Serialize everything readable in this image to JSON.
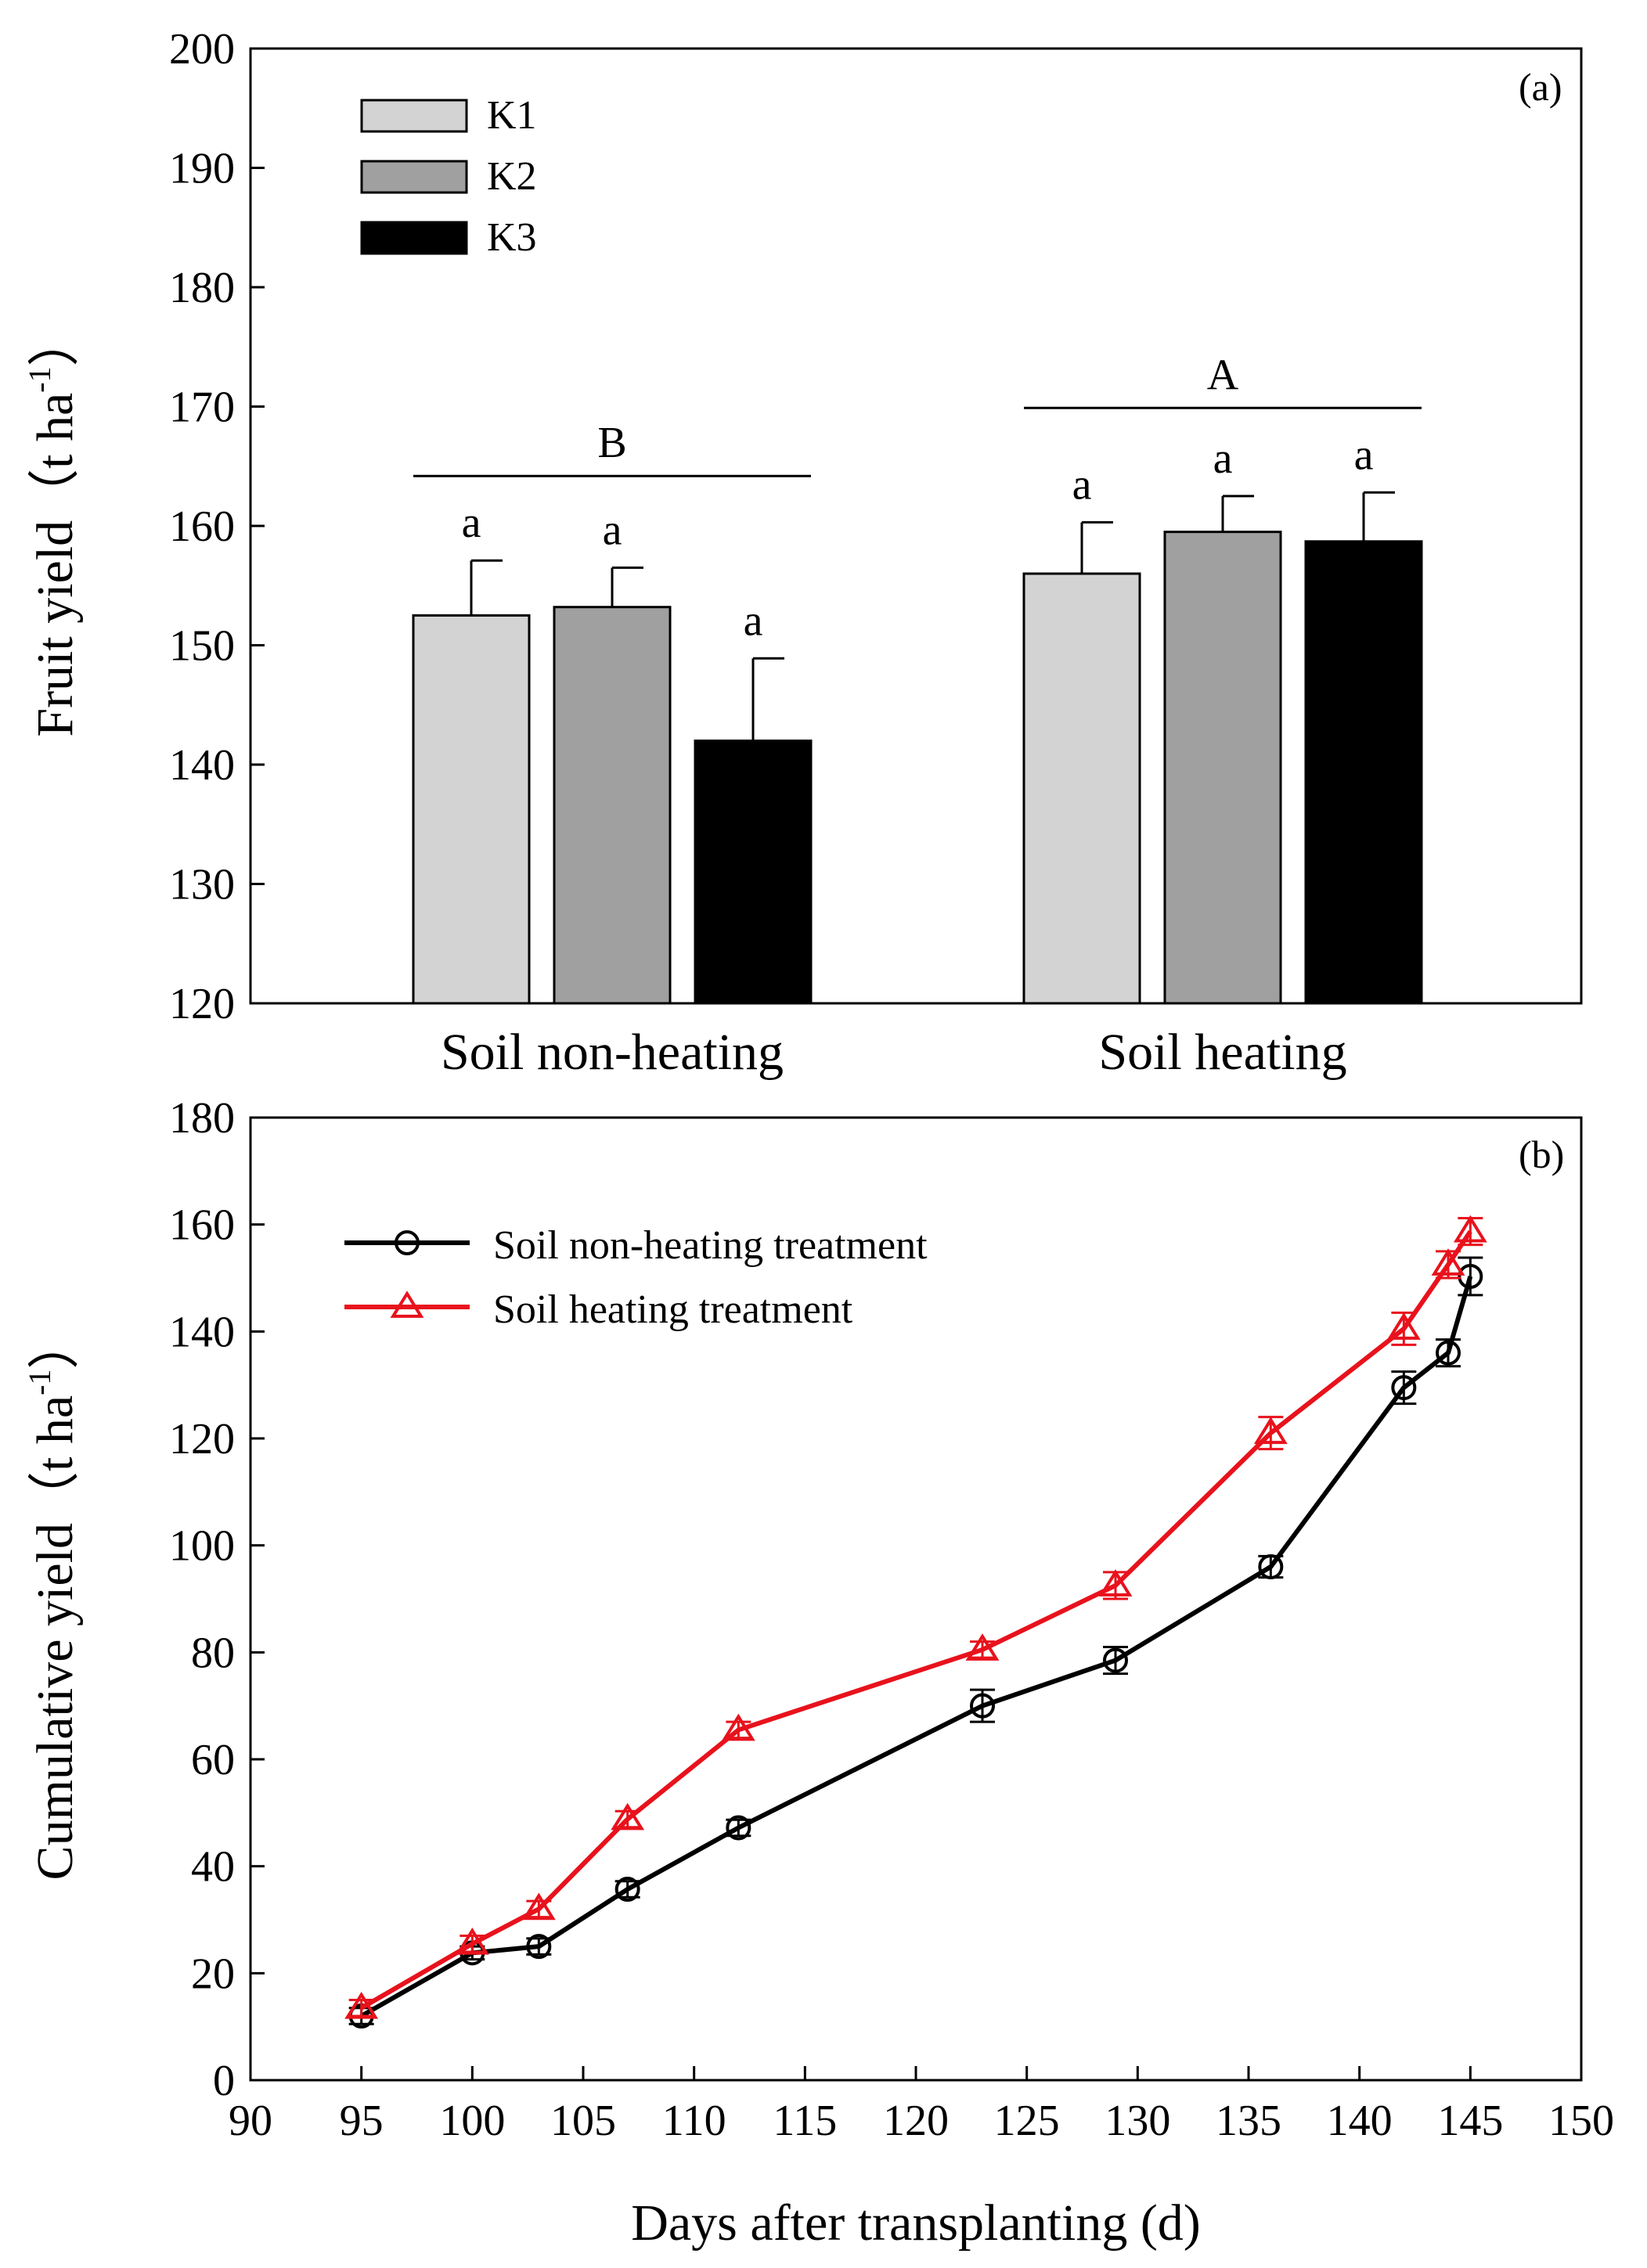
{
  "chart_data": [
    {
      "id": "a",
      "type": "bar",
      "panel_label": "(a)",
      "title": "",
      "xlabel": "",
      "ylabel": "Fruit yield（t ha",
      "ylabel_sup": "-1",
      "ylabel_close": "）",
      "ylim": [
        120,
        200
      ],
      "yticks": [
        120,
        130,
        140,
        150,
        160,
        170,
        180,
        190,
        200
      ],
      "grid": false,
      "legend_position": "top-left",
      "categories": [
        "Soil non-heating",
        "Soil heating"
      ],
      "series": [
        {
          "name": "K1",
          "color": "#d3d3d3",
          "values": [
            152.5,
            156.0
          ],
          "errors": [
            4.6,
            4.3
          ],
          "letters": [
            "a",
            "a"
          ]
        },
        {
          "name": "K2",
          "color": "#a0a0a0",
          "values": [
            153.2,
            159.5
          ],
          "errors": [
            3.3,
            3.0
          ],
          "letters": [
            "a",
            "a"
          ]
        },
        {
          "name": "K3",
          "color": "#000000",
          "values": [
            142.0,
            158.7
          ],
          "errors": [
            6.9,
            4.1
          ],
          "letters": [
            "a",
            "a"
          ]
        }
      ],
      "group_letters": [
        "B",
        "A"
      ]
    },
    {
      "id": "b",
      "type": "line",
      "panel_label": "(b)",
      "title": "",
      "xlabel": "Days after transplanting (d)",
      "ylabel": "Cumulative yield（t ha",
      "ylabel_sup": "-1",
      "ylabel_close": "）",
      "xlim": [
        90,
        150
      ],
      "ylim": [
        0,
        180
      ],
      "xticks": [
        90,
        95,
        100,
        105,
        110,
        115,
        120,
        125,
        130,
        135,
        140,
        145,
        150
      ],
      "yticks": [
        0,
        20,
        40,
        60,
        80,
        100,
        120,
        140,
        160,
        180
      ],
      "grid": false,
      "legend_position": "top-left",
      "x": [
        95,
        100,
        103,
        107,
        112,
        123,
        129,
        136,
        142,
        144,
        145
      ],
      "series": [
        {
          "name": "Soil non-heating treatment",
          "color": "#000000",
          "marker": "circle",
          "values": [
            12.0,
            23.8,
            25.0,
            35.7,
            47.2,
            70.0,
            78.5,
            96.0,
            129.5,
            136.0,
            150.3
          ],
          "errors": [
            1.5,
            1.2,
            1.5,
            1.5,
            1.5,
            3.0,
            2.5,
            2.0,
            3.0,
            2.5,
            3.5
          ]
        },
        {
          "name": "Soil heating treatment",
          "color": "#e8121c",
          "marker": "triangle",
          "values": [
            13.5,
            25.5,
            32.0,
            48.8,
            65.5,
            80.5,
            92.5,
            121.0,
            140.5,
            152.5,
            158.7
          ],
          "errors": [
            1.5,
            1.5,
            1.5,
            1.5,
            1.5,
            1.5,
            2.5,
            3.0,
            3.0,
            2.5,
            2.5
          ]
        }
      ]
    }
  ]
}
